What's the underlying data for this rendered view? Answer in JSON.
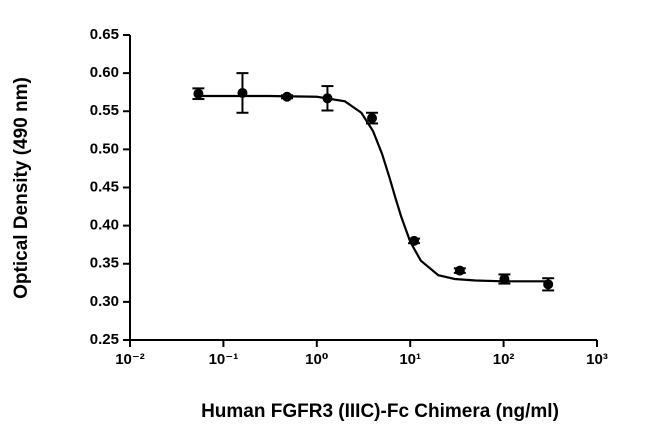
{
  "chart_data": {
    "type": "scatter",
    "x_label": "Human FGFR3 (IIIC)-Fc Chimera (ng/ml)",
    "y_label": "Optical Density (490 nm)",
    "xscale": "log",
    "xlim": [
      0.01,
      1000
    ],
    "xticks": [
      {
        "value": 0.01,
        "label": "10⁻²"
      },
      {
        "value": 0.1,
        "label": "10⁻¹"
      },
      {
        "value": 1,
        "label": "10⁰"
      },
      {
        "value": 10,
        "label": "10¹"
      },
      {
        "value": 100,
        "label": "10²"
      },
      {
        "value": 1000,
        "label": "10³"
      }
    ],
    "ylim": [
      0.25,
      0.65
    ],
    "yticks": [
      0.25,
      {
        "value": 0.3,
        "label": "0.30"
      },
      0.35,
      {
        "value": 0.4,
        "label": "0.40"
      },
      0.45,
      {
        "value": 0.5,
        "label": "0.50"
      },
      0.55,
      {
        "value": 0.6,
        "label": "0.60"
      },
      0.65
    ],
    "series": [
      {
        "color": "#000000",
        "x": [
          0.054,
          0.16,
          0.48,
          1.3,
          3.9,
          11,
          34,
          102,
          300
        ],
        "values": [
          0.573,
          0.574,
          0.569,
          0.567,
          0.541,
          0.38,
          0.341,
          0.33,
          0.323
        ],
        "errors": [
          0.007,
          0.026,
          0.002,
          0.016,
          0.007,
          0.003,
          0.003,
          0.006,
          0.008
        ]
      },
      {
        "type": "line",
        "color": "#000000",
        "x": [
          0.054,
          0.1,
          0.3,
          1,
          2,
          3,
          4,
          5,
          6,
          7,
          8,
          10,
          13,
          20,
          30,
          50,
          100,
          300
        ],
        "values": [
          0.57,
          0.57,
          0.57,
          0.569,
          0.563,
          0.548,
          0.524,
          0.494,
          0.463,
          0.435,
          0.412,
          0.379,
          0.354,
          0.335,
          0.33,
          0.328,
          0.327,
          0.327
        ]
      }
    ]
  }
}
